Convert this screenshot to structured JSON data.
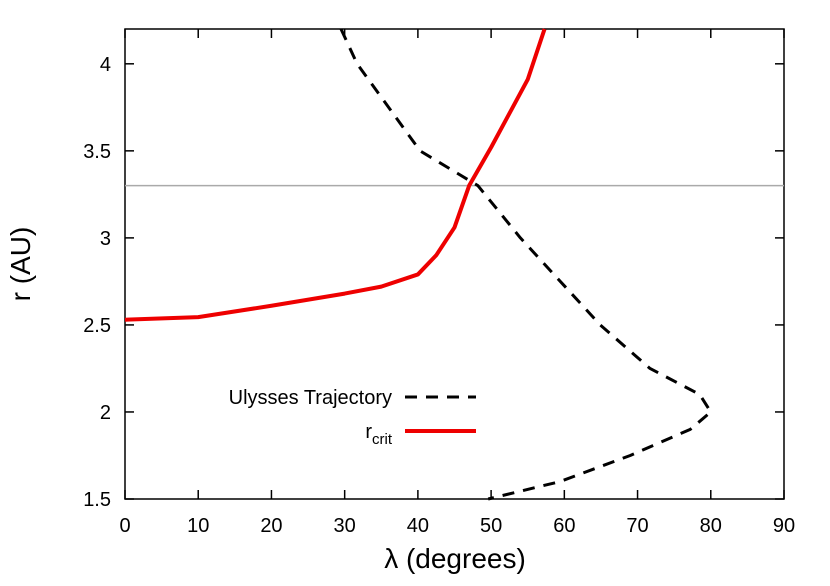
{
  "chart_data": {
    "type": "line",
    "xlabel": "λ (degrees)",
    "ylabel": "r (AU)",
    "xlim": [
      0,
      90
    ],
    "xticks": [
      0,
      10,
      20,
      30,
      40,
      50,
      60,
      70,
      80,
      90
    ],
    "ylim": [
      1.5,
      4.2
    ],
    "yticks": [
      1.5,
      2,
      2.5,
      3,
      3.5,
      4
    ],
    "grid": false,
    "legend": "lower left",
    "reference_line": {
      "value": 3.3,
      "color": "#aaaaaa"
    },
    "series": [
      {
        "name": "Ulysses Trajectory",
        "color": "#000000",
        "dashed": true,
        "x": [
          29.5,
          31.7,
          40.3,
          48.2,
          54,
          64.9,
          71.7,
          78.5,
          80,
          77.2,
          69,
          59.4,
          49.6
        ],
        "values": [
          4.2,
          4.0,
          3.5,
          3.3,
          3.0,
          2.5,
          2.25,
          2.1,
          2.0,
          1.9,
          1.75,
          1.6,
          1.5
        ]
      },
      {
        "name": "r",
        "name_subscript": "crit",
        "color": "#ee0000",
        "dashed": false,
        "x": [
          0,
          10,
          20,
          30,
          35,
          40,
          42.5,
          45,
          47,
          50,
          55,
          57.3
        ],
        "values": [
          2.53,
          2.545,
          2.61,
          2.68,
          2.72,
          2.79,
          2.9,
          3.06,
          3.3,
          3.52,
          3.91,
          4.2
        ]
      }
    ]
  }
}
